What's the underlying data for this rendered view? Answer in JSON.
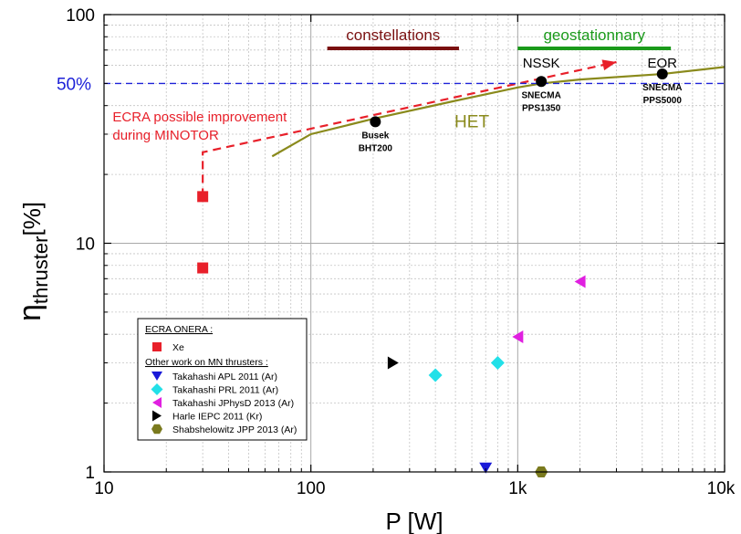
{
  "chart_data": {
    "type": "scatter",
    "xlabel": "P [W]",
    "ylabel_main": "η",
    "ylabel_sub": "thruster",
    "ylabel_unit": "[%]",
    "xscale": "log",
    "yscale": "log",
    "xlim": [
      10,
      10000
    ],
    "ylim": [
      1,
      100
    ],
    "grid": true,
    "x_ticks": [
      {
        "value": 10,
        "label": "10"
      },
      {
        "value": 100,
        "label": "100"
      },
      {
        "value": 1000,
        "label": "1k"
      },
      {
        "value": 10000,
        "label": "10k"
      }
    ],
    "y_ticks": [
      {
        "value": 1,
        "label": "1"
      },
      {
        "value": 10,
        "label": "10"
      },
      {
        "value": 100,
        "label": "100"
      }
    ],
    "reference_line": {
      "value": 50,
      "label": "50%",
      "color": "#1e22d8"
    },
    "series": [
      {
        "name": "Xe",
        "marker": "square",
        "color": "#e8202a",
        "points": [
          {
            "x": 30,
            "y": 16
          },
          {
            "x": 30,
            "y": 7.8
          }
        ]
      },
      {
        "name": "Takahashi APL 2011 (Ar)",
        "marker": "triangle-down",
        "color": "#1a1ad8",
        "points": [
          {
            "x": 700,
            "y": 1.04
          }
        ]
      },
      {
        "name": "Takahashi PRL 2011 (Ar)",
        "marker": "diamond",
        "color": "#22e0e8",
        "points": [
          {
            "x": 400,
            "y": 2.65
          },
          {
            "x": 800,
            "y": 3.0
          }
        ]
      },
      {
        "name": "Takahashi JPhysD 2013 (Ar)",
        "marker": "triangle-left",
        "color": "#e020e0",
        "points": [
          {
            "x": 1000,
            "y": 3.9
          },
          {
            "x": 2000,
            "y": 6.8
          }
        ]
      },
      {
        "name": "Harle IEPC 2011 (Kr)",
        "marker": "triangle-right",
        "color": "#000000",
        "points": [
          {
            "x": 250,
            "y": 3.0
          }
        ]
      },
      {
        "name": "Shabshelowitz JPP 2013 (Ar)",
        "marker": "hexagon",
        "color": "#7a7a1e",
        "points": [
          {
            "x": 1300,
            "y": 1.0
          }
        ]
      }
    ],
    "het_curve": {
      "label": "HET",
      "color": "#8a8a1c",
      "points": [
        [
          65,
          24
        ],
        [
          100,
          30
        ],
        [
          200,
          35
        ],
        [
          500,
          42
        ],
        [
          1000,
          48
        ],
        [
          1300,
          50
        ],
        [
          2000,
          52
        ],
        [
          5000,
          55
        ],
        [
          10000,
          59
        ]
      ]
    },
    "het_points": [
      {
        "x": 205,
        "y": 34,
        "lines": [
          "Busek",
          "BHT200"
        ]
      },
      {
        "x": 1300,
        "y": 51,
        "lines": [
          "SNECMA",
          "PPS1350"
        ]
      },
      {
        "x": 5000,
        "y": 55,
        "lines": [
          "SNECMA",
          "PPS5000"
        ]
      }
    ],
    "ecra_improvement": {
      "label_lines": [
        "ECRA possible improvement",
        "during MINOTOR"
      ],
      "color": "#e8202a",
      "path": [
        [
          30,
          16
        ],
        [
          30,
          25
        ],
        [
          3000,
          62
        ]
      ]
    },
    "ranges": [
      {
        "label": "constellations",
        "x": [
          120,
          520
        ],
        "color": "#7a1010"
      },
      {
        "label": "geostationnary",
        "x": [
          1000,
          5500
        ],
        "color": "#1a9a1a"
      }
    ],
    "annotations": [
      {
        "text": "NSSK",
        "x": 1300,
        "y": 62
      },
      {
        "text": "EOR",
        "x": 5000,
        "y": 62
      }
    ],
    "legend": {
      "position": "bottom-left",
      "group1_title": "ECRA ONERA :",
      "group2_title": "Other work on MN thrusters :"
    }
  }
}
